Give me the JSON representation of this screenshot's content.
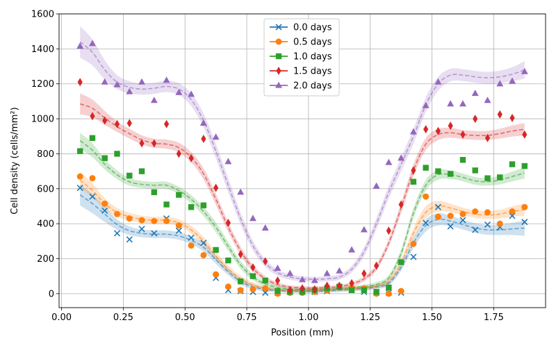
{
  "chart_data": {
    "type": "line",
    "title": "",
    "xlabel": "Position (mm)",
    "ylabel": "Cell density (cells/mm²)",
    "xlim": [
      -0.01,
      1.96
    ],
    "ylim": [
      -80,
      1600
    ],
    "xticks": [
      0.0,
      0.25,
      0.5,
      0.75,
      1.0,
      1.25,
      1.5,
      1.75
    ],
    "xtick_labels": [
      "0.00",
      "0.25",
      "0.50",
      "0.75",
      "1.00",
      "1.25",
      "1.50",
      "1.75"
    ],
    "yticks": [
      0,
      200,
      400,
      600,
      800,
      1000,
      1200,
      1400,
      1600
    ],
    "ytick_labels": [
      "0",
      "200",
      "400",
      "600",
      "800",
      "1000",
      "1200",
      "1400",
      "1600"
    ],
    "grid": true,
    "legend_position": "top-center",
    "x": [
      0.075,
      0.125,
      0.175,
      0.225,
      0.275,
      0.325,
      0.375,
      0.425,
      0.475,
      0.525,
      0.575,
      0.625,
      0.675,
      0.725,
      0.775,
      0.825,
      0.875,
      0.925,
      0.975,
      1.025,
      1.075,
      1.125,
      1.175,
      1.225,
      1.275,
      1.325,
      1.375,
      1.425,
      1.475,
      1.525,
      1.575,
      1.625,
      1.675,
      1.725,
      1.775,
      1.825,
      1.875
    ],
    "fit_x": [
      0.075,
      0.125,
      0.175,
      0.225,
      0.275,
      0.325,
      0.375,
      0.425,
      0.475,
      0.525,
      0.575,
      0.625,
      0.675,
      0.725,
      0.775,
      0.825,
      0.875,
      0.925,
      0.975,
      1.025,
      1.075,
      1.125,
      1.175,
      1.225,
      1.275,
      1.325,
      1.375,
      1.425,
      1.475,
      1.525,
      1.575,
      1.625,
      1.675,
      1.725,
      1.775,
      1.825,
      1.875
    ],
    "series": [
      {
        "name": "0.0 days",
        "color": "#1f77b4",
        "marker": "x",
        "values": [
          605,
          555,
          475,
          345,
          310,
          370,
          345,
          430,
          360,
          320,
          290,
          90,
          20,
          15,
          10,
          5,
          5,
          10,
          15,
          10,
          15,
          40,
          20,
          10,
          5,
          5,
          5,
          210,
          405,
          495,
          385,
          420,
          365,
          395,
          380,
          445,
          410
        ],
        "fit": [
          565,
          515,
          455,
          395,
          360,
          345,
          340,
          340,
          330,
          305,
          265,
          195,
          125,
          70,
          40,
          25,
          18,
          15,
          14,
          14,
          16,
          20,
          25,
          30,
          38,
          60,
          150,
          290,
          390,
          425,
          415,
          395,
          375,
          365,
          365,
          370,
          375
        ],
        "band": [
          60,
          55,
          45,
          30,
          25,
          22,
          22,
          22,
          22,
          22,
          24,
          24,
          20,
          18,
          15,
          12,
          10,
          10,
          10,
          10,
          10,
          10,
          12,
          12,
          12,
          15,
          20,
          30,
          35,
          35,
          30,
          28,
          28,
          28,
          30,
          35,
          45
        ]
      },
      {
        "name": "0.5 days",
        "color": "#ff7f0e",
        "marker": "o",
        "values": [
          670,
          660,
          515,
          455,
          430,
          420,
          415,
          415,
          390,
          275,
          220,
          110,
          40,
          20,
          25,
          30,
          0,
          5,
          5,
          10,
          20,
          40,
          35,
          30,
          0,
          0,
          15,
          285,
          555,
          440,
          445,
          455,
          470,
          465,
          400,
          470,
          495
        ],
        "fit": [
          650,
          590,
          515,
          465,
          440,
          425,
          420,
          420,
          405,
          365,
          300,
          215,
          140,
          85,
          50,
          32,
          22,
          18,
          17,
          18,
          20,
          24,
          28,
          33,
          42,
          70,
          175,
          345,
          465,
          500,
          490,
          470,
          455,
          450,
          455,
          470,
          480
        ],
        "band": [
          45,
          40,
          30,
          25,
          22,
          20,
          20,
          20,
          20,
          22,
          25,
          25,
          20,
          18,
          15,
          12,
          10,
          10,
          10,
          10,
          10,
          10,
          12,
          12,
          12,
          15,
          22,
          30,
          35,
          30,
          25,
          22,
          22,
          22,
          25,
          30,
          35
        ]
      },
      {
        "name": "1.0 days",
        "color": "#2ca02c",
        "marker": "s",
        "values": [
          815,
          890,
          775,
          800,
          675,
          700,
          580,
          510,
          565,
          495,
          505,
          250,
          190,
          70,
          100,
          75,
          15,
          10,
          10,
          20,
          30,
          40,
          20,
          20,
          10,
          35,
          180,
          640,
          720,
          700,
          685,
          765,
          705,
          660,
          665,
          740,
          730
        ],
        "fit": [
          875,
          820,
          740,
          680,
          640,
          625,
          620,
          620,
          590,
          540,
          470,
          380,
          270,
          165,
          95,
          55,
          35,
          26,
          22,
          22,
          25,
          28,
          34,
          40,
          52,
          90,
          230,
          460,
          620,
          680,
          680,
          665,
          645,
          640,
          650,
          670,
          690
        ],
        "band": [
          45,
          40,
          30,
          25,
          22,
          20,
          20,
          20,
          22,
          24,
          26,
          28,
          26,
          22,
          18,
          14,
          12,
          10,
          10,
          10,
          10,
          10,
          12,
          12,
          14,
          16,
          24,
          30,
          30,
          28,
          25,
          22,
          22,
          22,
          25,
          28,
          32
        ]
      },
      {
        "name": "1.5 days",
        "color": "#d62728",
        "marker": "d",
        "values": [
          1210,
          1015,
          990,
          970,
          975,
          860,
          860,
          970,
          800,
          775,
          885,
          605,
          405,
          225,
          150,
          185,
          75,
          20,
          30,
          25,
          45,
          45,
          60,
          115,
          160,
          360,
          510,
          705,
          940,
          930,
          960,
          910,
          1000,
          890,
          1025,
          1005,
          910
        ],
        "fit": [
          1085,
          1060,
          1005,
          955,
          915,
          880,
          860,
          855,
          835,
          780,
          685,
          540,
          380,
          245,
          145,
          85,
          52,
          38,
          33,
          32,
          35,
          40,
          55,
          85,
          150,
          290,
          490,
          705,
          855,
          910,
          920,
          910,
          905,
          905,
          915,
          930,
          940
        ],
        "band": [
          60,
          50,
          40,
          30,
          28,
          26,
          26,
          26,
          28,
          30,
          32,
          32,
          28,
          24,
          20,
          15,
          12,
          10,
          10,
          10,
          10,
          10,
          12,
          14,
          18,
          22,
          30,
          34,
          35,
          32,
          28,
          26,
          26,
          26,
          28,
          32,
          36
        ]
      },
      {
        "name": "2.0 days",
        "color": "#9467bd",
        "marker": "^",
        "values": [
          1415,
          1430,
          1210,
          1195,
          1155,
          1210,
          1105,
          1220,
          1150,
          1140,
          975,
          895,
          755,
          580,
          430,
          375,
          145,
          115,
          80,
          75,
          115,
          130,
          250,
          365,
          615,
          750,
          775,
          925,
          1075,
          1210,
          1085,
          1085,
          1145,
          1105,
          1200,
          1215,
          1270
        ],
        "fit": [
          1440,
          1380,
          1280,
          1210,
          1180,
          1170,
          1175,
          1185,
          1170,
          1110,
          990,
          815,
          620,
          430,
          275,
          175,
          120,
          95,
          85,
          82,
          85,
          95,
          140,
          240,
          400,
          580,
          740,
          900,
          1080,
          1200,
          1250,
          1250,
          1240,
          1235,
          1240,
          1255,
          1280
        ],
        "band": [
          90,
          75,
          55,
          40,
          35,
          32,
          32,
          32,
          34,
          36,
          40,
          42,
          40,
          34,
          28,
          22,
          18,
          16,
          14,
          14,
          14,
          16,
          20,
          26,
          32,
          36,
          40,
          42,
          42,
          40,
          36,
          34,
          34,
          34,
          36,
          40,
          50
        ]
      }
    ]
  }
}
